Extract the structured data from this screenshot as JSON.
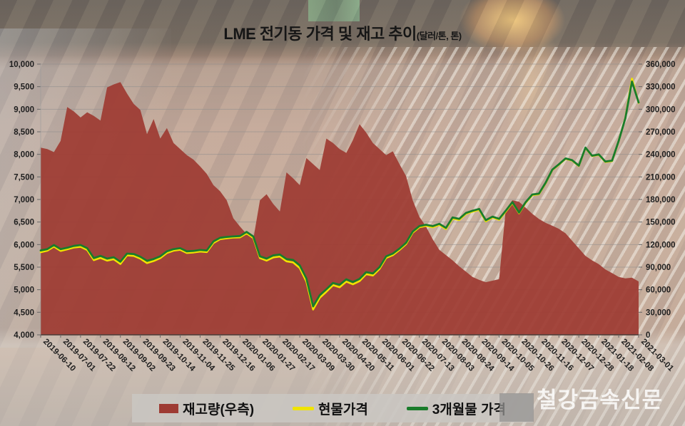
{
  "title": {
    "main": "LME 전기동 가격 및 재고 추이",
    "unit": "(달러/톤, 톤)"
  },
  "watermark": "철강금속신문",
  "legend": {
    "items": [
      {
        "label": "재고량(우측)",
        "type": "area",
        "color": "#9e3b33"
      },
      {
        "label": "현물가격",
        "type": "line",
        "color": "#f0e400"
      },
      {
        "label": "3개월물 가격",
        "type": "line",
        "color": "#1a7c2b"
      }
    ]
  },
  "chart_data": {
    "type": "combo",
    "title": "LME 전기동 가격 및 재고 추이",
    "unit_note": "(달러/톤, 톤)",
    "grid": true,
    "legend_position": "bottom",
    "left_axis": {
      "min": 4000,
      "max": 10000,
      "step": 500,
      "tick_labels": [
        "10,000",
        "9,500",
        "9,000",
        "8,500",
        "8,000",
        "7,500",
        "7,000",
        "6,500",
        "6,000",
        "5,500",
        "5,000",
        "4,500",
        "4,000"
      ]
    },
    "right_axis": {
      "min": 0,
      "max": 360000,
      "step": 30000,
      "tick_labels": [
        "360,000",
        "330,000",
        "300,000",
        "270,000",
        "240,000",
        "210,000",
        "180,000",
        "150,000",
        "120,000",
        "90,000",
        "60,000",
        "30,000",
        "0"
      ]
    },
    "x_labels": [
      "2019-06-10",
      "2019-07-01",
      "2019-07-22",
      "2019-08-12",
      "2019-09-02",
      "2019-09-23",
      "2019-10-14",
      "2019-11-04",
      "2019-11-25",
      "2019-12-16",
      "2020-01-06",
      "2020-01-27",
      "2020-02-17",
      "2020-03-09",
      "2020-03-30",
      "2020-04-20",
      "2020-05-11",
      "2020-06-01",
      "2020-06-22",
      "2020-07-13",
      "2020-08-03",
      "2020-08-24",
      "2020-09-14",
      "2020-10-05",
      "2020-10-26",
      "2020-11-16",
      "2020-12-07",
      "2020-12-28",
      "2021-01-18",
      "2021-02-08",
      "2021-03-01"
    ],
    "dates": [
      "2019-06-10",
      "2019-06-17",
      "2019-06-24",
      "2019-07-01",
      "2019-07-08",
      "2019-07-15",
      "2019-07-22",
      "2019-07-29",
      "2019-08-05",
      "2019-08-12",
      "2019-08-19",
      "2019-08-26",
      "2019-09-02",
      "2019-09-09",
      "2019-09-16",
      "2019-09-23",
      "2019-09-30",
      "2019-10-07",
      "2019-10-14",
      "2019-10-21",
      "2019-10-28",
      "2019-11-04",
      "2019-11-11",
      "2019-11-18",
      "2019-11-25",
      "2019-12-02",
      "2019-12-09",
      "2019-12-16",
      "2019-12-23",
      "2019-12-30",
      "2020-01-06",
      "2020-01-13",
      "2020-01-20",
      "2020-01-27",
      "2020-02-03",
      "2020-02-10",
      "2020-02-17",
      "2020-02-24",
      "2020-03-02",
      "2020-03-09",
      "2020-03-16",
      "2020-03-23",
      "2020-03-30",
      "2020-04-06",
      "2020-04-13",
      "2020-04-20",
      "2020-04-27",
      "2020-05-04",
      "2020-05-11",
      "2020-05-18",
      "2020-05-25",
      "2020-06-01",
      "2020-06-08",
      "2020-06-15",
      "2020-06-22",
      "2020-06-29",
      "2020-07-06",
      "2020-07-13",
      "2020-07-20",
      "2020-07-27",
      "2020-08-03",
      "2020-08-10",
      "2020-08-17",
      "2020-08-24",
      "2020-08-31",
      "2020-09-07",
      "2020-09-14",
      "2020-09-21",
      "2020-09-28",
      "2020-10-05",
      "2020-10-12",
      "2020-10-19",
      "2020-10-26",
      "2020-11-02",
      "2020-11-09",
      "2020-11-16",
      "2020-11-23",
      "2020-11-30",
      "2020-12-07",
      "2020-12-14",
      "2020-12-21",
      "2020-12-28",
      "2021-01-04",
      "2021-01-11",
      "2021-01-18",
      "2021-01-25",
      "2021-02-01",
      "2021-02-08",
      "2021-02-15",
      "2021-02-22",
      "2021-03-01"
    ],
    "series": [
      {
        "name": "재고량(우측)",
        "type": "area",
        "axis": "right",
        "color": "#9e3b33",
        "values": [
          249000,
          247000,
          243000,
          258000,
          303000,
          297000,
          289000,
          296000,
          291000,
          285000,
          329000,
          333000,
          336000,
          321000,
          307000,
          299000,
          267000,
          287000,
          261000,
          275000,
          255000,
          247000,
          239000,
          233000,
          224000,
          214000,
          199000,
          191000,
          179000,
          155000,
          144000,
          134000,
          127000,
          179000,
          187000,
          174000,
          164000,
          216000,
          208000,
          199000,
          235000,
          227000,
          219000,
          261000,
          255000,
          247000,
          242000,
          259000,
          280000,
          269000,
          255000,
          247000,
          239000,
          244000,
          227000,
          211000,
          179000,
          157000,
          144000,
          127000,
          113000,
          106000,
          99000,
          91000,
          84000,
          77000,
          73000,
          70000,
          72000,
          74000,
          167000,
          179000,
          177000,
          169000,
          161000,
          154000,
          149000,
          145000,
          141000,
          135000,
          125000,
          115000,
          105000,
          99000,
          94000,
          87000,
          82000,
          77000,
          75000,
          76000,
          71000
        ]
      },
      {
        "name": "현물가격",
        "type": "line",
        "axis": "left",
        "color": "#f0e400",
        "values": [
          5830,
          5865,
          5955,
          5860,
          5895,
          5935,
          5950,
          5880,
          5655,
          5705,
          5645,
          5675,
          5570,
          5760,
          5750,
          5690,
          5590,
          5635,
          5700,
          5815,
          5865,
          5885,
          5815,
          5825,
          5845,
          5835,
          6035,
          6120,
          6140,
          6155,
          6160,
          6250,
          6145,
          5700,
          5645,
          5715,
          5735,
          5630,
          5605,
          5480,
          5180,
          4560,
          4820,
          4955,
          5100,
          5055,
          5180,
          5120,
          5190,
          5345,
          5315,
          5460,
          5705,
          5765,
          5880,
          6010,
          6265,
          6385,
          6415,
          6385,
          6435,
          6345,
          6575,
          6545,
          6680,
          6730,
          6770,
          6515,
          6600,
          6550,
          6730,
          6925,
          6695,
          6925,
          7095,
          7115,
          7355,
          7650,
          7770,
          7900,
          7860,
          7740,
          8140,
          7960,
          7990,
          7830,
          7850,
          8295,
          8810,
          9680,
          9140
        ]
      },
      {
        "name": "3개월물 가격",
        "type": "line",
        "axis": "left",
        "color": "#1a7c2b",
        "values": [
          5870,
          5900,
          5990,
          5900,
          5930,
          5970,
          5990,
          5920,
          5700,
          5750,
          5690,
          5720,
          5620,
          5800,
          5790,
          5730,
          5640,
          5680,
          5740,
          5850,
          5900,
          5920,
          5850,
          5860,
          5880,
          5870,
          6070,
          6150,
          6170,
          6180,
          6190,
          6280,
          6180,
          5740,
          5690,
          5760,
          5780,
          5680,
          5660,
          5540,
          5250,
          4630,
          4880,
          5010,
          5150,
          5110,
          5230,
          5170,
          5240,
          5390,
          5360,
          5500,
          5740,
          5800,
          5910,
          6040,
          6290,
          6410,
          6440,
          6410,
          6460,
          6370,
          6600,
          6570,
          6700,
          6750,
          6790,
          6540,
          6620,
          6570,
          6750,
          6940,
          6710,
          6940,
          7110,
          7130,
          7370,
          7660,
          7780,
          7910,
          7870,
          7750,
          8150,
          7970,
          8000,
          7840,
          7860,
          8300,
          8800,
          9615,
          9150
        ]
      }
    ]
  }
}
